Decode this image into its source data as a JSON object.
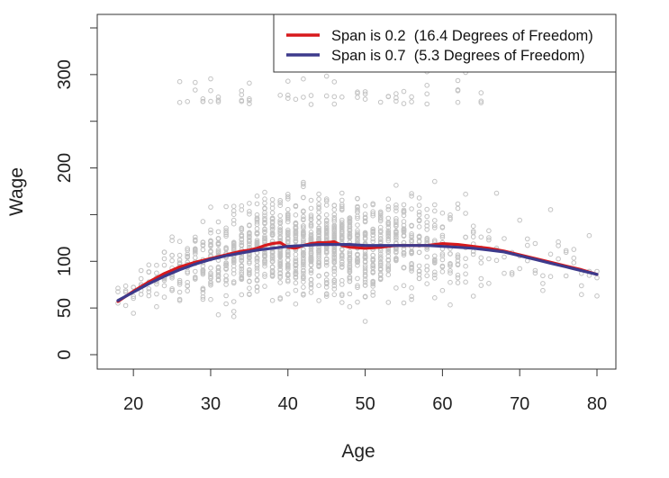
{
  "chart_data": {
    "type": "scatter",
    "title": "",
    "xlabel": "Age",
    "ylabel": "Wage",
    "xlim": [
      18,
      80
    ],
    "ylim": [
      0,
      350
    ],
    "xticks": [
      20,
      30,
      40,
      50,
      60,
      70,
      80
    ],
    "yticks": [
      0,
      50,
      100,
      150,
      200,
      250,
      300,
      350
    ],
    "ytick_labels": [
      "0",
      "50",
      "100",
      "",
      "200",
      "",
      "300",
      ""
    ],
    "grid": false,
    "legend_position": "top-right",
    "points_color": "#c2c2c2",
    "series": [
      {
        "name": "Span is 0.2  (16.4 Degrees of Freedom)",
        "color": "#d7191c",
        "x": [
          18,
          20,
          22,
          24,
          26,
          28,
          30,
          32,
          34,
          35,
          36,
          37,
          38,
          39,
          40,
          41,
          42,
          43,
          44,
          45,
          46,
          47,
          48,
          50,
          52,
          54,
          56,
          58,
          60,
          62,
          64,
          66,
          68,
          70,
          72,
          74,
          76,
          78,
          80
        ],
        "y": [
          57,
          68,
          78,
          87,
          94,
          99,
          103,
          107,
          111,
          112,
          114,
          117,
          119,
          120,
          115,
          114,
          117,
          119,
          120,
          120,
          121,
          117,
          115,
          114,
          115,
          117,
          117,
          117,
          119,
          118,
          116,
          114,
          111,
          107,
          103,
          99,
          95,
          91,
          86
        ]
      },
      {
        "name": "Span is 0.7  (5.3 Degrees of Freedom)",
        "color": "#3d3a8c",
        "x": [
          18,
          20,
          22,
          24,
          26,
          28,
          30,
          32,
          34,
          36,
          38,
          40,
          42,
          44,
          46,
          48,
          50,
          52,
          54,
          56,
          58,
          60,
          62,
          64,
          66,
          68,
          70,
          72,
          74,
          76,
          78,
          80
        ],
        "y": [
          58,
          67,
          76,
          84,
          91,
          97,
          102,
          106,
          109,
          112,
          114,
          116,
          117,
          118,
          118,
          118,
          117,
          117,
          117,
          117,
          117,
          116,
          115,
          114,
          112,
          110,
          106,
          102,
          98,
          94,
          90,
          86
        ]
      }
    ]
  }
}
